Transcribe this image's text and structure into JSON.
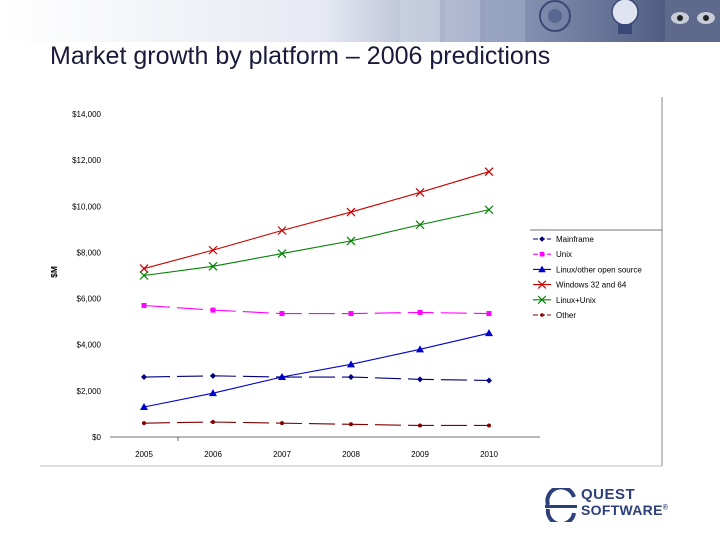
{
  "slide": {
    "title": "Market growth by platform – 2006 predictions",
    "logo": {
      "line1": "QUEST",
      "line2": "SOFTWARE",
      "mark": "®"
    }
  },
  "chart_data": {
    "type": "line",
    "title": "",
    "xlabel": "",
    "ylabel": "$M",
    "categories": [
      "2005",
      "2006",
      "2007",
      "2008",
      "2009",
      "2010"
    ],
    "yticks": [
      "$0",
      "$2,000",
      "$4,000",
      "$6,000",
      "$8,000",
      "$10,000",
      "$12,000",
      "$14,000"
    ],
    "ylim": [
      0,
      14000
    ],
    "grid": false,
    "legend_position": "right",
    "series": [
      {
        "name": "Mainframe",
        "values": [
          2600,
          2650,
          2600,
          2600,
          2500,
          2450
        ],
        "color": "#000080",
        "marker": "diamond",
        "dash": "dashed"
      },
      {
        "name": "Unix",
        "values": [
          5700,
          5500,
          5350,
          5350,
          5400,
          5350
        ],
        "color": "#ff00ff",
        "marker": "square",
        "dash": "dashed"
      },
      {
        "name": "Linux/other open source",
        "values": [
          1300,
          1900,
          2600,
          3150,
          3800,
          4500
        ],
        "color": "#0000cc",
        "marker": "triangle",
        "dash": "solid"
      },
      {
        "name": "Windows 32 and 64",
        "values": [
          7300,
          8100,
          8950,
          9750,
          10600,
          11500
        ],
        "color": "#cc0000",
        "marker": "x",
        "dash": "solid"
      },
      {
        "name": "Linux+Unix",
        "values": [
          7000,
          7400,
          7950,
          8500,
          9200,
          9850
        ],
        "color": "#008000",
        "marker": "x",
        "dash": "solid"
      },
      {
        "name": "Other",
        "values": [
          600,
          650,
          600,
          550,
          500,
          500
        ],
        "color": "#800000",
        "marker": "circle",
        "dash": "dashed"
      }
    ]
  }
}
